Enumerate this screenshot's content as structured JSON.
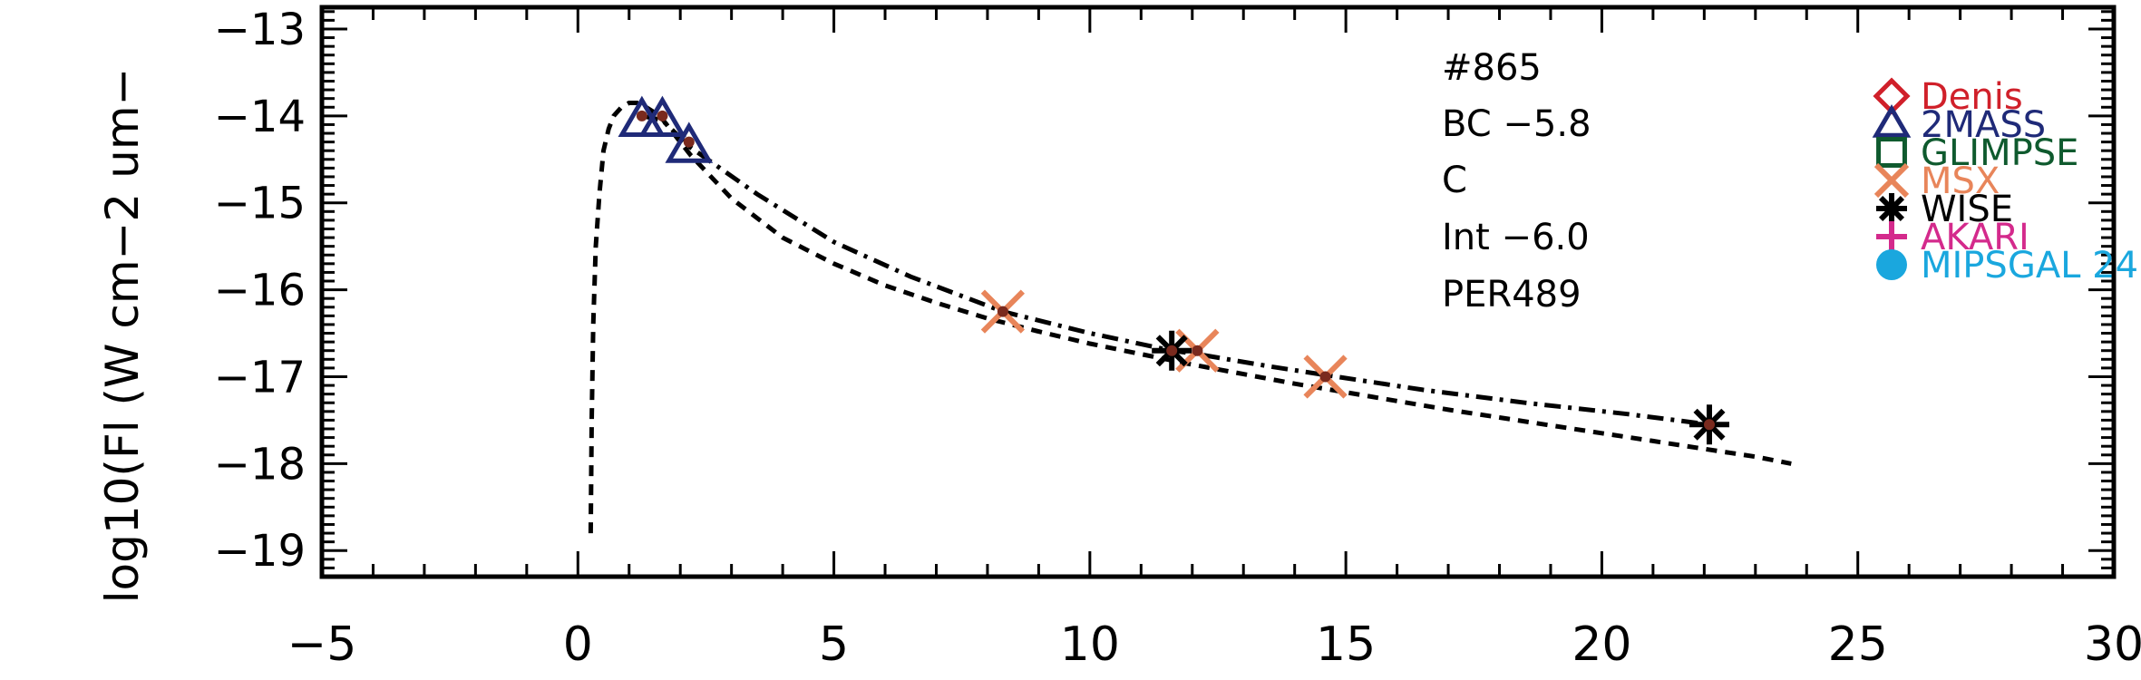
{
  "chart_data": {
    "type": "scatter",
    "title": "",
    "ylabel": "log10(Fl (W cm−2 um−",
    "xlabel": "",
    "xlim": [
      -5,
      30
    ],
    "ylim": [
      -19.3,
      -12.75
    ],
    "xticks": [
      -5,
      0,
      5,
      10,
      15,
      20,
      25,
      30
    ],
    "yticks": [
      -19,
      -18,
      -17,
      -16,
      -15,
      -14,
      -13
    ],
    "xtick_labels": [
      "−5",
      "0",
      "5",
      "10",
      "15",
      "20",
      "25",
      "30"
    ],
    "ytick_labels": [
      "−19",
      "−18",
      "−17",
      "−16",
      "−15",
      "−14",
      "−13"
    ],
    "annotations": [
      "#865",
      "BC  −5.8",
      "C",
      "Int  −6.0",
      "PER489"
    ],
    "legend": {
      "position": "top-right",
      "entries": [
        {
          "label": "Denis",
          "marker": "diamond",
          "color": "#d0202a"
        },
        {
          "label": "2MASS",
          "marker": "triangle",
          "color": "#1f2a78"
        },
        {
          "label": "GLIMPSE",
          "marker": "square",
          "color": "#0f5a2e"
        },
        {
          "label": "MSX",
          "marker": "x",
          "color": "#e8855a"
        },
        {
          "label": "WISE",
          "marker": "asterisk",
          "color": "#000000"
        },
        {
          "label": "AKARI",
          "marker": "plus",
          "color": "#d42a8c"
        },
        {
          "label": "MIPSGAL 24",
          "marker": "circle",
          "color": "#1aa7de"
        }
      ]
    },
    "series": [
      {
        "name": "2MASS",
        "marker": "triangle",
        "color": "#1f2a78",
        "x": [
          1.25,
          1.65,
          2.17
        ],
        "y": [
          -14.05,
          -14.05,
          -14.35
        ]
      },
      {
        "name": "MSX",
        "marker": "x",
        "color": "#e8855a",
        "x": [
          8.3,
          12.1,
          14.6
        ],
        "y": [
          -16.25,
          -16.7,
          -17.0
        ]
      },
      {
        "name": "WISE",
        "marker": "asterisk",
        "color": "#000000",
        "x": [
          11.6,
          22.1
        ],
        "y": [
          -16.7,
          -17.55
        ]
      },
      {
        "name": "",
        "marker": "dot",
        "color": "#7a2a1e",
        "x": [
          1.25,
          1.65,
          2.17,
          8.3,
          11.6,
          12.1,
          14.6,
          22.1
        ],
        "y": [
          -14.0,
          -14.0,
          -14.3,
          -16.25,
          -16.7,
          -16.7,
          -17.0,
          -17.55
        ]
      }
    ],
    "lines": [
      {
        "style": "dashed",
        "color": "#000000",
        "x": [
          0.25,
          0.27,
          0.3,
          0.35,
          0.42,
          0.5,
          0.6,
          0.7,
          0.85,
          1.0,
          1.2,
          1.6,
          2.2,
          3.0,
          4.0,
          5.0,
          6.0,
          7.0,
          8.0,
          9.0,
          10.0,
          11.0,
          12.0,
          13.0,
          14.0,
          15.0,
          16.0,
          17.0,
          18.0,
          19.0,
          20.0,
          21.0,
          22.0,
          23.0,
          23.7
        ],
        "y": [
          -18.8,
          -17.5,
          -16.4,
          -15.5,
          -14.9,
          -14.4,
          -14.15,
          -14.0,
          -13.9,
          -13.85,
          -13.85,
          -14.0,
          -14.45,
          -14.95,
          -15.4,
          -15.7,
          -15.95,
          -16.15,
          -16.33,
          -16.48,
          -16.62,
          -16.74,
          -16.86,
          -16.97,
          -17.08,
          -17.18,
          -17.28,
          -17.38,
          -17.47,
          -17.56,
          -17.65,
          -17.74,
          -17.83,
          -17.92,
          -18.0
        ]
      },
      {
        "style": "dashdot",
        "color": "#000000",
        "x": [
          1.25,
          1.65,
          2.17,
          3.5,
          5.0,
          6.5,
          8.3,
          10.0,
          11.6,
          12.1,
          13.5,
          14.6,
          16.5,
          18.5,
          20.5,
          22.1
        ],
        "y": [
          -14.0,
          -14.05,
          -14.35,
          -14.9,
          -15.45,
          -15.85,
          -16.25,
          -16.5,
          -16.7,
          -16.74,
          -16.88,
          -16.98,
          -17.15,
          -17.3,
          -17.43,
          -17.55
        ]
      }
    ]
  }
}
